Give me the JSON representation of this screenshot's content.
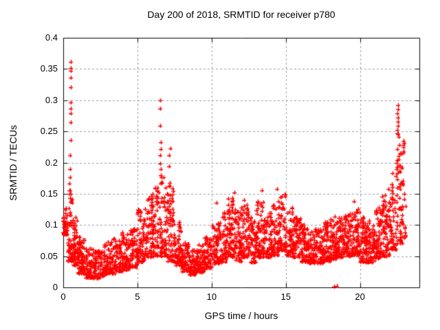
{
  "chart_data": {
    "type": "scatter",
    "title": "Day 200 of 2018, SRMTID for receiver p780",
    "xlabel": "GPS time / hours",
    "ylabel": "SRMTID / TECUs",
    "xlim": [
      0,
      24
    ],
    "ylim": [
      0,
      0.4
    ],
    "xticks": [
      0,
      5,
      10,
      15,
      20
    ],
    "xtick_labels": [
      "0",
      "5",
      "10",
      "15",
      "20"
    ],
    "yticks": [
      0,
      0.05,
      0.1,
      0.15,
      0.2,
      0.25,
      0.3,
      0.35,
      0.4
    ],
    "ytick_labels": [
      "0",
      "0.05",
      "0.1",
      "0.15",
      "0.2",
      "0.25",
      "0.3",
      "0.35",
      "0.4"
    ],
    "grid": true,
    "legend": "none",
    "marker": {
      "shape": "plus",
      "color": "#ff0000",
      "size": 7
    },
    "seed": 2018200,
    "series": [
      {
        "name": "SRMTID",
        "representation": "density-envelope-bins [hourStart, hourEnd, minTECU, maxTECU, nPoints]",
        "band_bins": [
          [
            0.0,
            0.3,
            0.085,
            0.133,
            42
          ],
          [
            0.3,
            0.7,
            0.042,
            0.155,
            50
          ],
          [
            0.7,
            1.0,
            0.035,
            0.12,
            40
          ],
          [
            1.0,
            1.5,
            0.022,
            0.08,
            55
          ],
          [
            1.5,
            2.0,
            0.015,
            0.062,
            55
          ],
          [
            2.0,
            2.5,
            0.014,
            0.058,
            55
          ],
          [
            2.5,
            3.0,
            0.018,
            0.068,
            55
          ],
          [
            3.0,
            3.5,
            0.022,
            0.082,
            55
          ],
          [
            3.5,
            4.0,
            0.025,
            0.075,
            55
          ],
          [
            4.0,
            4.5,
            0.028,
            0.088,
            55
          ],
          [
            4.5,
            5.0,
            0.032,
            0.098,
            55
          ],
          [
            5.0,
            5.5,
            0.04,
            0.125,
            55
          ],
          [
            5.5,
            6.0,
            0.048,
            0.15,
            55
          ],
          [
            6.0,
            6.5,
            0.05,
            0.16,
            55
          ],
          [
            6.5,
            7.0,
            0.05,
            0.185,
            55
          ],
          [
            7.0,
            7.5,
            0.042,
            0.165,
            55
          ],
          [
            7.5,
            8.0,
            0.035,
            0.105,
            55
          ],
          [
            8.0,
            8.5,
            0.025,
            0.072,
            55
          ],
          [
            8.5,
            9.0,
            0.02,
            0.06,
            55
          ],
          [
            9.0,
            9.5,
            0.024,
            0.068,
            55
          ],
          [
            9.5,
            10.0,
            0.03,
            0.082,
            55
          ],
          [
            10.0,
            10.5,
            0.038,
            0.105,
            55
          ],
          [
            10.5,
            11.0,
            0.04,
            0.12,
            55
          ],
          [
            11.0,
            11.5,
            0.048,
            0.145,
            55
          ],
          [
            11.5,
            12.0,
            0.042,
            0.125,
            55
          ],
          [
            12.0,
            12.5,
            0.048,
            0.132,
            55
          ],
          [
            12.5,
            13.0,
            0.04,
            0.112,
            55
          ],
          [
            13.0,
            13.5,
            0.048,
            0.138,
            55
          ],
          [
            13.5,
            14.0,
            0.048,
            0.122,
            55
          ],
          [
            14.0,
            14.5,
            0.052,
            0.132,
            55
          ],
          [
            14.5,
            15.0,
            0.058,
            0.152,
            55
          ],
          [
            15.0,
            15.5,
            0.05,
            0.128,
            55
          ],
          [
            15.5,
            16.0,
            0.048,
            0.112,
            55
          ],
          [
            16.0,
            16.5,
            0.04,
            0.1,
            55
          ],
          [
            16.5,
            17.0,
            0.038,
            0.092,
            55
          ],
          [
            17.0,
            17.5,
            0.038,
            0.096,
            55
          ],
          [
            17.5,
            18.0,
            0.042,
            0.105,
            55
          ],
          [
            18.0,
            18.5,
            0.045,
            0.115,
            55
          ],
          [
            18.5,
            19.0,
            0.048,
            0.112,
            55
          ],
          [
            19.0,
            19.5,
            0.05,
            0.12,
            55
          ],
          [
            19.5,
            20.0,
            0.048,
            0.128,
            55
          ],
          [
            20.0,
            20.5,
            0.04,
            0.112,
            55
          ],
          [
            20.5,
            21.0,
            0.04,
            0.112,
            55
          ],
          [
            21.0,
            21.5,
            0.046,
            0.128,
            55
          ],
          [
            21.5,
            22.0,
            0.05,
            0.148,
            55
          ],
          [
            22.0,
            22.5,
            0.06,
            0.185,
            55
          ],
          [
            22.5,
            23.0,
            0.07,
            0.235,
            50
          ],
          [
            23.0,
            23.1,
            0.08,
            0.15,
            8
          ]
        ],
        "outliers": [
          [
            0.5,
            0.361
          ],
          [
            0.5,
            0.351
          ],
          [
            0.5,
            0.347
          ],
          [
            0.51,
            0.336
          ],
          [
            0.52,
            0.321
          ],
          [
            0.49,
            0.296
          ],
          [
            0.5,
            0.287
          ],
          [
            0.5,
            0.279
          ],
          [
            0.52,
            0.264
          ],
          [
            0.49,
            0.236
          ],
          [
            0.47,
            0.212
          ],
          [
            0.45,
            0.19
          ],
          [
            0.48,
            0.176
          ],
          [
            0.44,
            0.166
          ],
          [
            0.46,
            0.155
          ],
          [
            6.53,
            0.3
          ],
          [
            6.55,
            0.287
          ],
          [
            6.54,
            0.259
          ],
          [
            6.56,
            0.232
          ],
          [
            6.57,
            0.221
          ],
          [
            6.55,
            0.212
          ],
          [
            6.52,
            0.198
          ],
          [
            6.58,
            0.19
          ],
          [
            6.62,
            0.176
          ],
          [
            6.6,
            0.166
          ],
          [
            7.23,
            0.223
          ],
          [
            7.15,
            0.212
          ],
          [
            7.14,
            0.194
          ],
          [
            7.2,
            0.168
          ],
          [
            10.35,
            0.135
          ],
          [
            11.52,
            0.152
          ],
          [
            12.2,
            0.14
          ],
          [
            13.4,
            0.155
          ],
          [
            14.42,
            0.158
          ],
          [
            19.6,
            0.138
          ],
          [
            21.5,
            0.145
          ],
          [
            21.9,
            0.158
          ],
          [
            22.55,
            0.292
          ],
          [
            22.56,
            0.285
          ],
          [
            22.54,
            0.279
          ],
          [
            22.57,
            0.272
          ],
          [
            22.55,
            0.266
          ],
          [
            22.58,
            0.259
          ],
          [
            22.53,
            0.252
          ],
          [
            22.56,
            0.246
          ],
          [
            22.59,
            0.241
          ],
          [
            22.52,
            0.247
          ],
          [
            22.5,
            0.222
          ],
          [
            22.65,
            0.228
          ],
          [
            22.68,
            0.215
          ],
          [
            22.6,
            0.21
          ],
          [
            22.62,
            0.205
          ],
          [
            22.45,
            0.2
          ],
          [
            22.7,
            0.195
          ],
          [
            22.48,
            0.19
          ],
          [
            18.25,
            0.001
          ],
          [
            18.42,
            0.002
          ]
        ]
      }
    ]
  },
  "colors": {
    "background": "#ffffff",
    "frame": "#000000",
    "grid": "#9e9e9e",
    "points": "#ff0000",
    "text": "#000000"
  }
}
